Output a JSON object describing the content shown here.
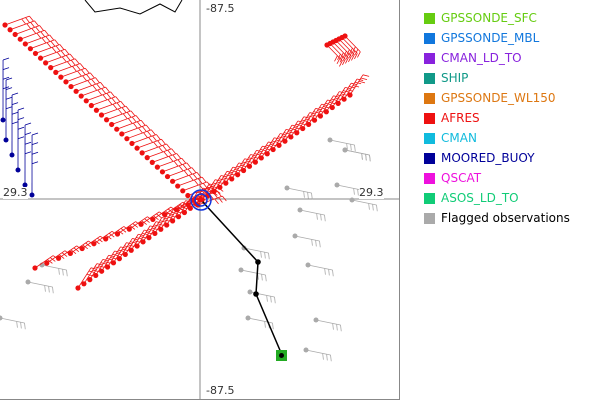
{
  "axes": {
    "top_longitude": "-87.5",
    "bottom_longitude": "-87.5",
    "left_latitude": "29.3",
    "right_latitude": "29.3"
  },
  "legend": {
    "items": [
      {
        "label": "GPSSONDE_SFC",
        "color": "#66cc11",
        "text_color": "#66cc11"
      },
      {
        "label": "GPSSONDE_MBL",
        "color": "#1177dd",
        "text_color": "#1177dd"
      },
      {
        "label": "CMAN_LD_TO",
        "color": "#8822dd",
        "text_color": "#8822dd"
      },
      {
        "label": "SHIP",
        "color": "#119988",
        "text_color": "#119988"
      },
      {
        "label": "GPSSONDE_WL150",
        "color": "#dd7711",
        "text_color": "#dd7711"
      },
      {
        "label": "AFRES",
        "color": "#ee1111",
        "text_color": "#ee1111"
      },
      {
        "label": "CMAN",
        "color": "#11bbdd",
        "text_color": "#11bbdd"
      },
      {
        "label": "MOORED_BUOY",
        "color": "#000099",
        "text_color": "#000099"
      },
      {
        "label": "QSCAT",
        "color": "#ee11dd",
        "text_color": "#ee11dd"
      },
      {
        "label": "ASOS_LD_TO",
        "color": "#11cc77",
        "text_color": "#11cc77"
      },
      {
        "label": "Flagged observations",
        "color": "#aaaaaa",
        "text_color": "#000000"
      }
    ]
  },
  "colors": {
    "afres": "#ee1111",
    "moored_buoy": "#000099",
    "flagged": "#aaaaaa",
    "gpssonde_sfc": "#22aa22",
    "storm_center": "#1133dd",
    "track": "#000000",
    "crosshair": "#888888"
  }
}
